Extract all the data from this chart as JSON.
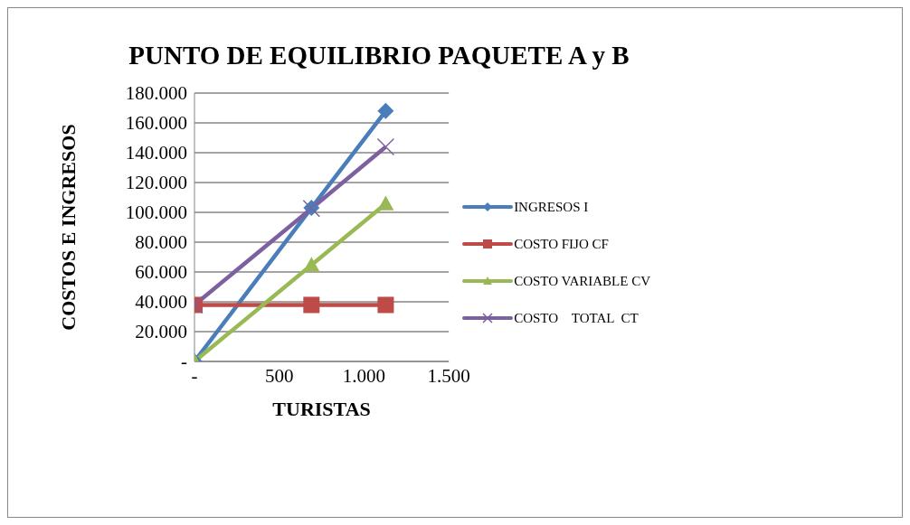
{
  "chart_data": {
    "type": "line",
    "title": "PUNTO DE EQUILIBRIO PAQUETE A y B",
    "xlabel": "TURISTAS",
    "ylabel": "COSTOS E INGRESOS",
    "xlim": [
      0,
      1500
    ],
    "xticks": [
      {
        "value": 0,
        "label": "-"
      },
      500,
      {
        "value": 1000,
        "label": "1.000"
      },
      {
        "value": 1500,
        "label": "1.500"
      }
    ],
    "ylim": [
      0,
      180000
    ],
    "yticks": [
      {
        "value": 0,
        "label": "-"
      },
      {
        "value": 20000,
        "label": "20.000"
      },
      {
        "value": 40000,
        "label": "40.000"
      },
      {
        "value": 60000,
        "label": "60.000"
      },
      {
        "value": 80000,
        "label": "80.000"
      },
      {
        "value": 100000,
        "label": "100.000"
      },
      {
        "value": 120000,
        "label": "120.000"
      },
      {
        "value": 140000,
        "label": "140.000"
      },
      {
        "value": 160000,
        "label": "160.000"
      },
      {
        "value": 180000,
        "label": "180.000"
      }
    ],
    "grid": "y",
    "legend": "right",
    "series": [
      {
        "name": "INGRESOS I",
        "color": "#4a7ebb",
        "marker": "diamond",
        "x": [
          0,
          690,
          1128
        ],
        "values": [
          0,
          103000,
          168000
        ]
      },
      {
        "name": "COSTO FIJO CF",
        "color": "#be4b48",
        "marker": "square",
        "x": [
          0,
          690,
          1128
        ],
        "values": [
          37900,
          37900,
          37900
        ]
      },
      {
        "name": "COSTO VARIABLE CV",
        "color": "#98b954",
        "marker": "triangle",
        "x": [
          0,
          690,
          1128
        ],
        "values": [
          0,
          64700,
          105800
        ]
      },
      {
        "name": "COSTO    TOTAL  CT",
        "color": "#7d60a0",
        "marker": "cross",
        "x": [
          0,
          690,
          1128
        ],
        "values": [
          37900,
          102600,
          143900
        ]
      }
    ]
  }
}
